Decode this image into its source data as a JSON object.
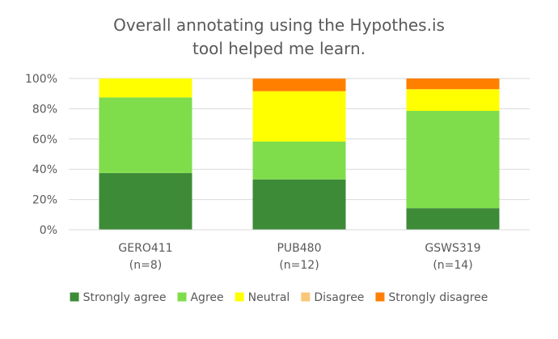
{
  "chart_data": {
    "type": "bar",
    "stacked": true,
    "title_lines": [
      "Overall annotating using the Hypothes.is",
      "tool helped me learn."
    ],
    "categories": [
      {
        "name": "GERO411",
        "n_label": "(n=8)"
      },
      {
        "name": "PUB480",
        "n_label": "(n=12)"
      },
      {
        "name": "GSWS319",
        "n_label": "(n=14)"
      }
    ],
    "y_ticks": [
      "0%",
      "20%",
      "40%",
      "60%",
      "80%",
      "100%"
    ],
    "ylim": [
      0,
      100
    ],
    "grid": true,
    "legend_position": "bottom",
    "series": [
      {
        "name": "Strongly agree",
        "color": "#3d8b37",
        "values": [
          37.5,
          33.3,
          14.3
        ]
      },
      {
        "name": "Agree",
        "color": "#7fdd4c",
        "values": [
          50.0,
          25.0,
          64.3
        ]
      },
      {
        "name": "Neutral",
        "color": "#ffff00",
        "values": [
          12.5,
          33.3,
          14.3
        ]
      },
      {
        "name": "Disagree",
        "color": "#f9c77a",
        "values": [
          0,
          0,
          0
        ]
      },
      {
        "name": "Strongly disagree",
        "color": "#ff7f00",
        "values": [
          0,
          8.3,
          7.1
        ]
      }
    ]
  }
}
